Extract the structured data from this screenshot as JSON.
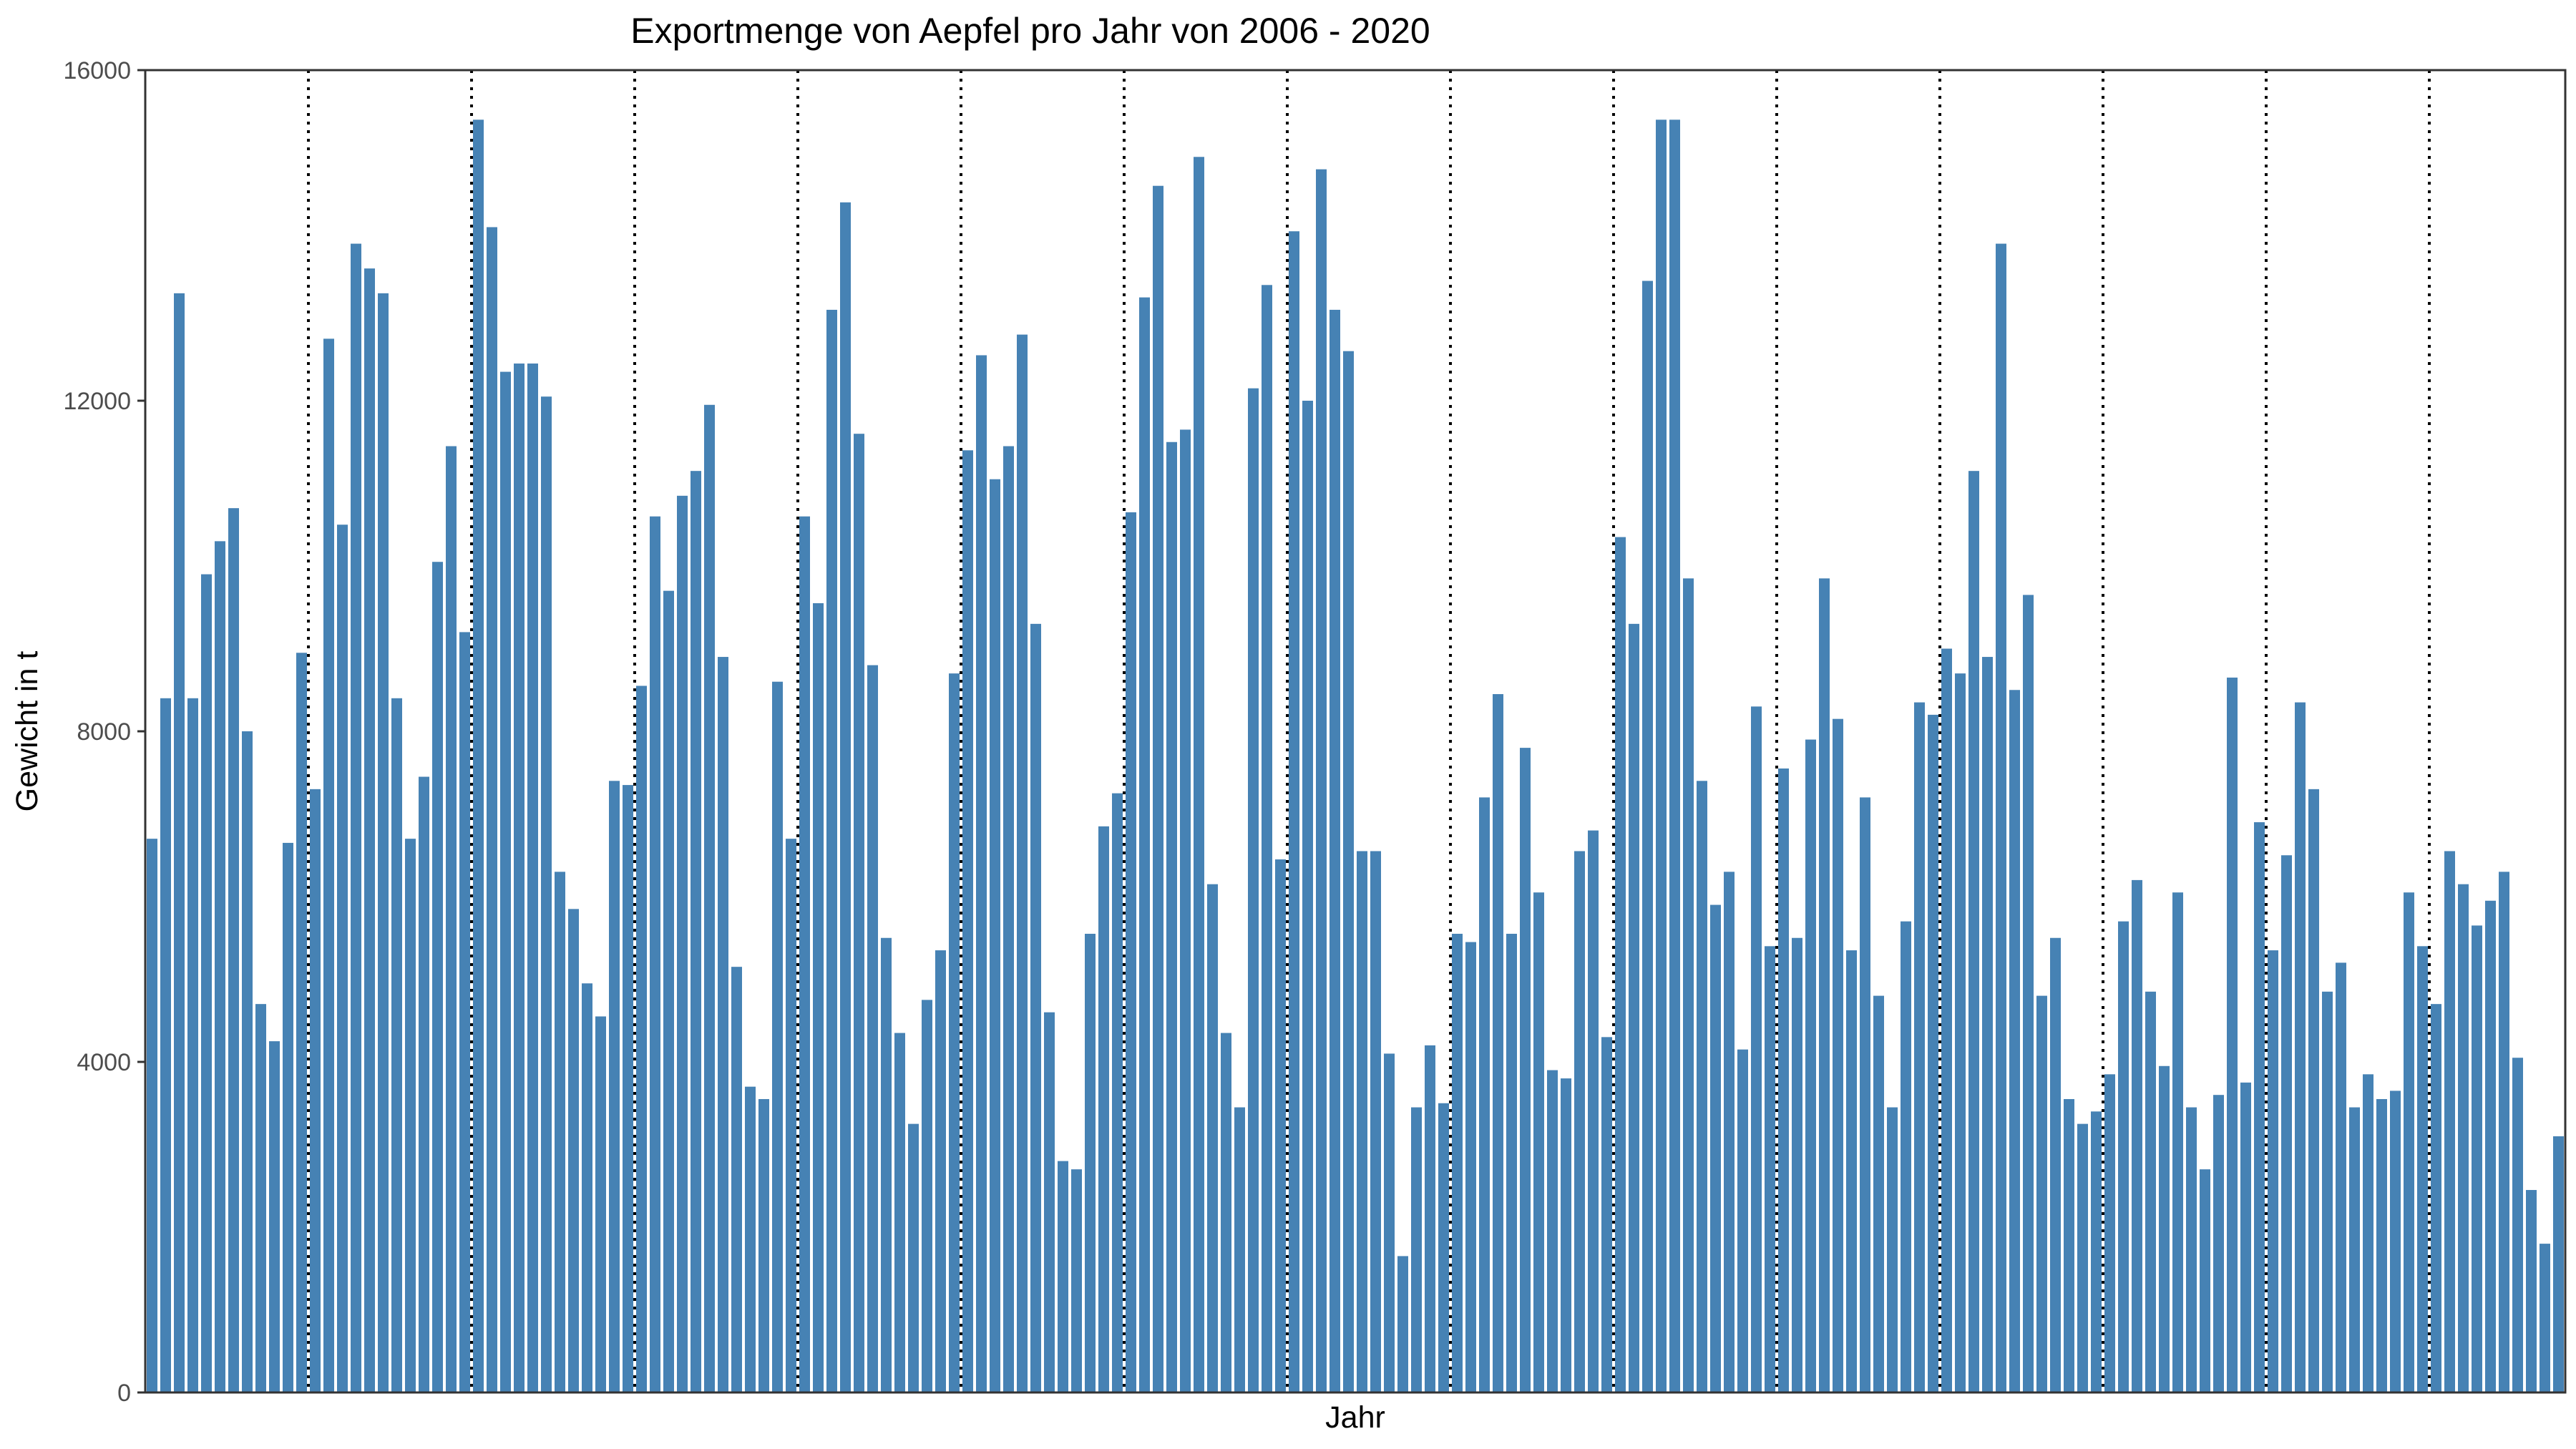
{
  "chart_data": {
    "type": "bar",
    "title": "Exportmenge von Aepfel pro Jahr von 2006 - 2020",
    "xlabel": "Jahr",
    "ylabel": "Gewicht in t",
    "ylim": [
      0,
      16000
    ],
    "yticks": [
      0,
      4000,
      8000,
      12000,
      16000
    ],
    "grid": false,
    "bar_color": "#4682B4",
    "year_separators": "dotted vertical lines between years",
    "year_separator_color": "#000000",
    "values": [
      6700,
      8400,
      13300,
      8400,
      9900,
      10300,
      10700,
      8000,
      4700,
      4250,
      6650,
      8950,
      7300,
      12750,
      10500,
      13900,
      13600,
      13300,
      8400,
      6700,
      7450,
      10050,
      11450,
      9200,
      15400,
      14100,
      12350,
      12450,
      12450,
      12050,
      6300,
      5850,
      4950,
      4550,
      7400,
      7350,
      8550,
      10600,
      9700,
      10850,
      11150,
      11950,
      8900,
      5150,
      3700,
      3550,
      8600,
      6700,
      10600,
      9550,
      13100,
      14400,
      11600,
      8800,
      5500,
      4350,
      3250,
      4750,
      5350,
      8700,
      11400,
      12550,
      11050,
      11450,
      12800,
      9300,
      4600,
      2800,
      2700,
      5550,
      6850,
      7250,
      10650,
      13250,
      14600,
      11500,
      11650,
      14950,
      6150,
      4350,
      3450,
      12150,
      13400,
      6450,
      14050,
      12000,
      14800,
      13100,
      12600,
      6550,
      6550,
      4100,
      1650,
      3450,
      4200,
      3500,
      5550,
      5450,
      7200,
      8450,
      5550,
      7800,
      6050,
      3900,
      3800,
      6550,
      6800,
      4300,
      10350,
      9300,
      13450,
      15400,
      15400,
      9850,
      7400,
      5900,
      6300,
      4150,
      8300,
      5400,
      7550,
      5500,
      7900,
      9850,
      8150,
      5350,
      7200,
      4800,
      3450,
      5700,
      8350,
      8200,
      9000,
      8700,
      11150,
      8900,
      13900,
      8500,
      9650,
      4800,
      5500,
      3550,
      3250,
      3400,
      3850,
      5700,
      6200,
      4850,
      3950,
      6050,
      3450,
      2700,
      3600,
      8650,
      3750,
      6900,
      5350,
      6500,
      8350,
      7300,
      4850,
      5200,
      3450,
      3850,
      3550,
      3650,
      6050,
      5400,
      4700,
      6550,
      6150,
      5650,
      5950,
      6300,
      4050,
      2450,
      1800,
      3100
    ]
  }
}
